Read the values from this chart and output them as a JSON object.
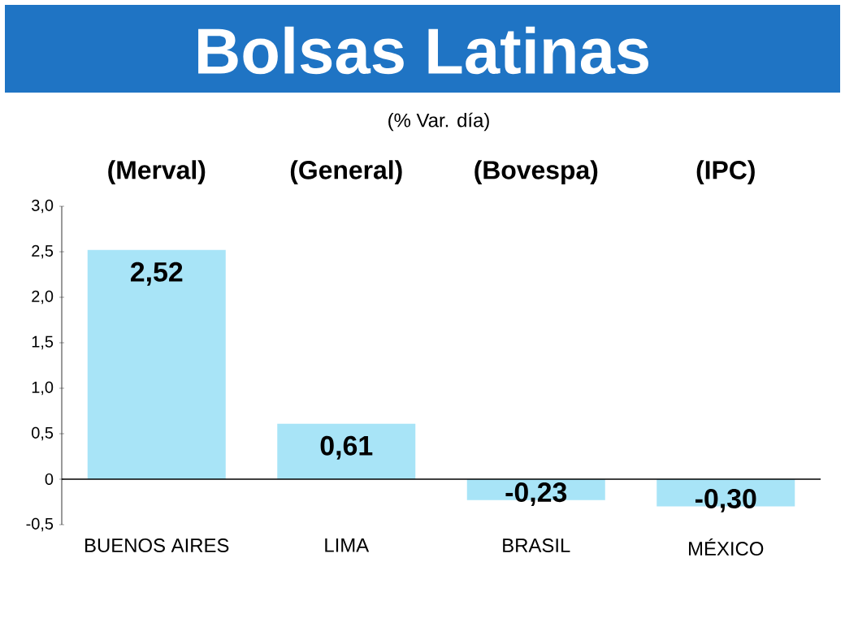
{
  "chart_data": {
    "type": "bar",
    "title": "Bolsas Latinas",
    "subtitle": "(% Var. día)",
    "categories": [
      "BUENOS AIRES",
      "LIMA",
      "BRASIL",
      "MÉXICO"
    ],
    "values": [
      2.52,
      0.61,
      -0.23,
      -0.3
    ],
    "value_labels": [
      "2,52",
      "0,61",
      "-0,23",
      "-0,30"
    ],
    "color": "#a8e4f7",
    "ylim": [
      -0.5,
      3.0
    ],
    "yticks": [
      {
        "value": -0.5,
        "label": "-0,5"
      },
      0,
      {
        "value": 0.5,
        "label": "0,5"
      },
      {
        "value": 1.0,
        "label": "1,0"
      },
      {
        "value": 1.5,
        "label": "1,5"
      },
      {
        "value": 2.0,
        "label": "2,0"
      },
      {
        "value": 2.5,
        "label": "2,5"
      },
      {
        "value": 3.0,
        "label": "3,0"
      }
    ],
    "annotations": [
      "(Merval)",
      "(General)",
      "(Bovespa)",
      "(IPC)"
    ]
  }
}
